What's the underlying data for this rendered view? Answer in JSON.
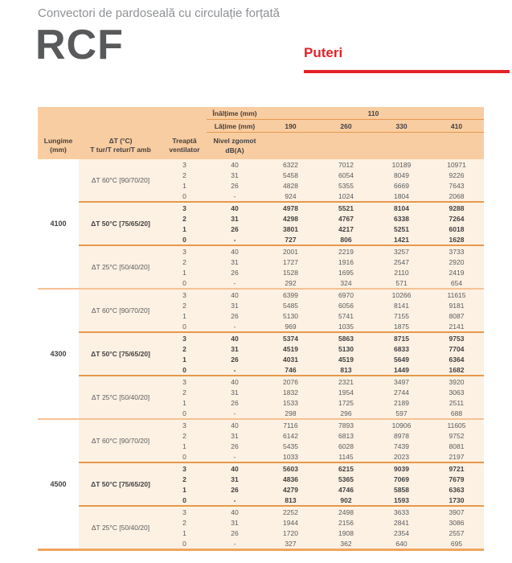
{
  "page": {
    "subtitle": "Convectori de pardoseală cu circulație forțată",
    "model": "RCF",
    "section_title": "Puteri"
  },
  "colors": {
    "accent_red": "#e32228",
    "header_peach": "#f9cda2",
    "body_cream": "#fcf1e3",
    "separator_orange": "#e8984c",
    "block_separator_light": "#f4c295",
    "bottom_border": "#f0a55e",
    "text_dark": "#414042",
    "text_gray": "#5a5b5e"
  },
  "table": {
    "height_label": "Înălțime (mm)",
    "height_value": "110",
    "width_label": "Lățime (mm)",
    "width_values": [
      "190",
      "260",
      "330",
      "410"
    ],
    "col_headers": {
      "lungime": [
        "Lungime",
        "(mm)"
      ],
      "delta_t": [
        "ΔT (°C)",
        "T tur/T retur/T amb"
      ],
      "treapta": [
        "Treaptă",
        "ventilator"
      ],
      "nivel": [
        "Nivel zgomot",
        "dB(A)"
      ]
    },
    "blocks": [
      {
        "lungime": "4100",
        "groups": [
          {
            "label": "ΔT 60°C [90/70/20]",
            "bold": false,
            "rows": [
              [
                "3",
                "40",
                "6322",
                "7012",
                "10189",
                "10971"
              ],
              [
                "2",
                "31",
                "5458",
                "6054",
                "8049",
                "9226"
              ],
              [
                "1",
                "26",
                "4828",
                "5355",
                "6669",
                "7643"
              ],
              [
                "0",
                "-",
                "924",
                "1024",
                "1804",
                "2068"
              ]
            ]
          },
          {
            "label": "ΔT 50°C [75/65/20]",
            "bold": true,
            "rows": [
              [
                "3",
                "40",
                "4978",
                "5521",
                "8104",
                "9288"
              ],
              [
                "2",
                "31",
                "4298",
                "4767",
                "6338",
                "7264"
              ],
              [
                "1",
                "26",
                "3801",
                "4217",
                "5251",
                "6018"
              ],
              [
                "0",
                "-",
                "727",
                "806",
                "1421",
                "1628"
              ]
            ]
          },
          {
            "label": "ΔT 25°C [50/40/20]",
            "bold": false,
            "rows": [
              [
                "3",
                "40",
                "2001",
                "2219",
                "3257",
                "3733"
              ],
              [
                "2",
                "31",
                "1727",
                "1916",
                "2547",
                "2920"
              ],
              [
                "1",
                "26",
                "1528",
                "1695",
                "2110",
                "2419"
              ],
              [
                "0",
                "-",
                "292",
                "324",
                "571",
                "654"
              ]
            ]
          }
        ]
      },
      {
        "lungime": "4300",
        "groups": [
          {
            "label": "ΔT 60°C [90/70/20]",
            "bold": false,
            "rows": [
              [
                "3",
                "40",
                "6399",
                "6970",
                "10266",
                "11615"
              ],
              [
                "2",
                "31",
                "5485",
                "6056",
                "8141",
                "9181"
              ],
              [
                "1",
                "26",
                "5130",
                "5741",
                "7155",
                "8087"
              ],
              [
                "0",
                "-",
                "969",
                "1035",
                "1875",
                "2141"
              ]
            ]
          },
          {
            "label": "ΔT 50°C [75/65/20]",
            "bold": true,
            "rows": [
              [
                "3",
                "40",
                "5374",
                "5863",
                "8715",
                "9753"
              ],
              [
                "2",
                "31",
                "4519",
                "5130",
                "6833",
                "7704"
              ],
              [
                "1",
                "26",
                "4031",
                "4519",
                "5649",
                "6364"
              ],
              [
                "0",
                "-",
                "746",
                "813",
                "1449",
                "1682"
              ]
            ]
          },
          {
            "label": "ΔT 25°C [50/40/20]",
            "bold": false,
            "rows": [
              [
                "3",
                "40",
                "2076",
                "2321",
                "3497",
                "3920"
              ],
              [
                "2",
                "31",
                "1832",
                "1954",
                "2744",
                "3063"
              ],
              [
                "1",
                "26",
                "1533",
                "1725",
                "2189",
                "2511"
              ],
              [
                "0",
                "-",
                "298",
                "296",
                "597",
                "688"
              ]
            ]
          }
        ]
      },
      {
        "lungime": "4500",
        "groups": [
          {
            "label": "ΔT 60°C [90/70/20]",
            "bold": false,
            "rows": [
              [
                "3",
                "40",
                "7116",
                "7893",
                "10906",
                "11605"
              ],
              [
                "2",
                "31",
                "6142",
                "6813",
                "8978",
                "9752"
              ],
              [
                "1",
                "26",
                "5435",
                "6028",
                "7439",
                "8081"
              ],
              [
                "0",
                "-",
                "1033",
                "1145",
                "2023",
                "2197"
              ]
            ]
          },
          {
            "label": "ΔT 50°C [75/65/20]",
            "bold": true,
            "rows": [
              [
                "3",
                "40",
                "5603",
                "6215",
                "9039",
                "9721"
              ],
              [
                "2",
                "31",
                "4836",
                "5365",
                "7069",
                "7679"
              ],
              [
                "1",
                "26",
                "4279",
                "4746",
                "5858",
                "6363"
              ],
              [
                "0",
                "-",
                "813",
                "902",
                "1593",
                "1730"
              ]
            ]
          },
          {
            "label": "ΔT 25°C [50/40/20]",
            "bold": false,
            "rows": [
              [
                "3",
                "40",
                "2252",
                "2498",
                "3633",
                "3907"
              ],
              [
                "2",
                "31",
                "1944",
                "2156",
                "2841",
                "3086"
              ],
              [
                "1",
                "26",
                "1720",
                "1908",
                "2354",
                "2557"
              ],
              [
                "0",
                "-",
                "327",
                "362",
                "640",
                "695"
              ]
            ]
          }
        ]
      }
    ]
  }
}
